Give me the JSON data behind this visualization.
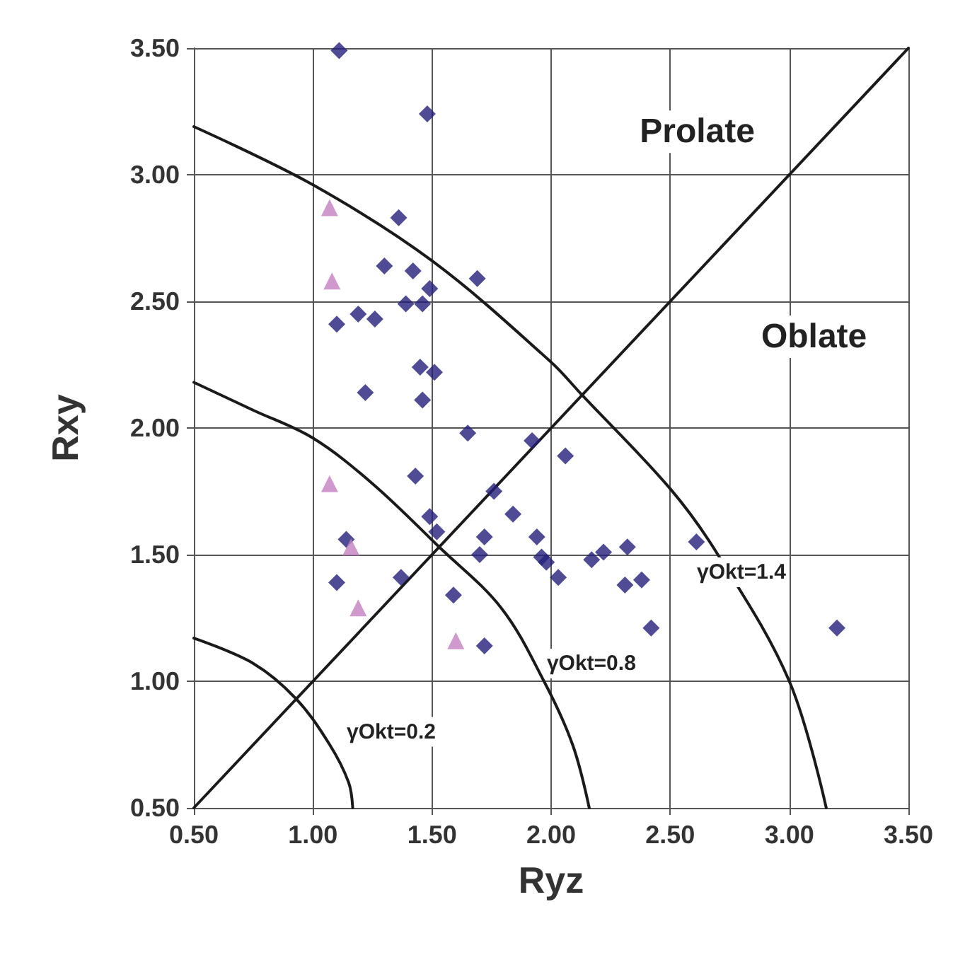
{
  "chart_data": {
    "type": "scatter",
    "xlabel": "Ryz",
    "ylabel": "Rxy",
    "xlim": [
      0.5,
      3.5
    ],
    "ylim": [
      0.5,
      3.5
    ],
    "xticks": [
      {
        "value": 0.5,
        "label": "0.50"
      },
      {
        "value": 1,
        "label": "1.00"
      },
      {
        "value": 1.5,
        "label": "1.50"
      },
      {
        "value": 2,
        "label": "2.00"
      },
      {
        "value": 2.5,
        "label": "2.50"
      },
      {
        "value": 3,
        "label": "3.00"
      },
      {
        "value": 3.5,
        "label": "3.50"
      }
    ],
    "yticks": [
      {
        "value": 0.5,
        "label": "0.50"
      },
      {
        "value": 1,
        "label": "1.00"
      },
      {
        "value": 1.5,
        "label": "1.50"
      },
      {
        "value": 2,
        "label": "2.00"
      },
      {
        "value": 2.5,
        "label": "2.50"
      },
      {
        "value": 3,
        "label": "3.00"
      },
      {
        "value": 3.5,
        "label": "3.50"
      }
    ],
    "grid": true,
    "series": [
      {
        "color": "#231f7a",
        "marker": "diamond",
        "x": [
          1.11,
          1.48,
          1.36,
          1.3,
          1.42,
          1.49,
          1.69,
          1.39,
          1.46,
          1.19,
          1.26,
          1.1,
          1.45,
          1.51,
          1.22,
          1.46,
          1.65,
          1.92,
          2.06,
          1.43,
          1.76,
          1.84,
          1.49,
          1.52,
          1.72,
          1.94,
          1.7,
          1.14,
          1.96,
          1.98,
          2.03,
          2.17,
          2.22,
          2.32,
          2.31,
          2.38,
          2.42,
          2.61,
          3.2,
          1.1,
          1.37,
          1.59,
          1.72
        ],
        "values": [
          3.49,
          3.24,
          2.83,
          2.64,
          2.62,
          2.55,
          2.59,
          2.49,
          2.49,
          2.45,
          2.43,
          2.41,
          2.24,
          2.22,
          2.14,
          2.11,
          1.98,
          1.95,
          1.89,
          1.81,
          1.75,
          1.66,
          1.65,
          1.59,
          1.57,
          1.57,
          1.5,
          1.56,
          1.49,
          1.47,
          1.41,
          1.48,
          1.51,
          1.53,
          1.38,
          1.4,
          1.21,
          1.55,
          1.21,
          1.39,
          1.41,
          1.34,
          1.14
        ]
      },
      {
        "color": "#c47fc0",
        "marker": "triangle",
        "x": [
          1.07,
          1.08,
          1.07,
          1.16,
          1.19,
          1.6
        ],
        "values": [
          2.87,
          2.58,
          1.78,
          1.53,
          1.29,
          1.16
        ]
      },
      {
        "type": "line",
        "color": "#1a1a1a",
        "marker": "none",
        "line_style": "solid",
        "x": [
          0.5,
          3.5
        ],
        "values": [
          0.5,
          3.5
        ]
      },
      {
        "type": "line",
        "color": "#1a1a1a",
        "marker": "none",
        "line_style": "solid",
        "x": [
          0.5,
          0.75,
          0.93,
          1.07,
          1.15,
          1.167
        ],
        "values": [
          1.17,
          1.07,
          0.93,
          0.75,
          0.6,
          0.5
        ]
      },
      {
        "type": "line",
        "color": "#1a1a1a",
        "marker": "none",
        "line_style": "solid",
        "x": [
          0.5,
          0.75,
          1.0,
          1.25,
          1.53,
          1.79,
          1.97,
          2.09,
          2.16
        ],
        "values": [
          2.18,
          2.07,
          1.96,
          1.78,
          1.53,
          1.29,
          1.0,
          0.75,
          0.5
        ]
      },
      {
        "type": "line",
        "color": "#1a1a1a",
        "marker": "none",
        "line_style": "solid",
        "x": [
          0.5,
          1.0,
          1.5,
          2.0,
          2.13,
          2.5,
          2.7,
          3.0,
          3.155
        ],
        "values": [
          3.19,
          2.96,
          2.66,
          2.26,
          2.13,
          1.76,
          1.5,
          1.0,
          0.5
        ]
      }
    ],
    "annotations": [
      "Prolate",
      "Oblate",
      "γOkt=0.2",
      "γOkt=0.8",
      "γOkt=1.4"
    ]
  }
}
